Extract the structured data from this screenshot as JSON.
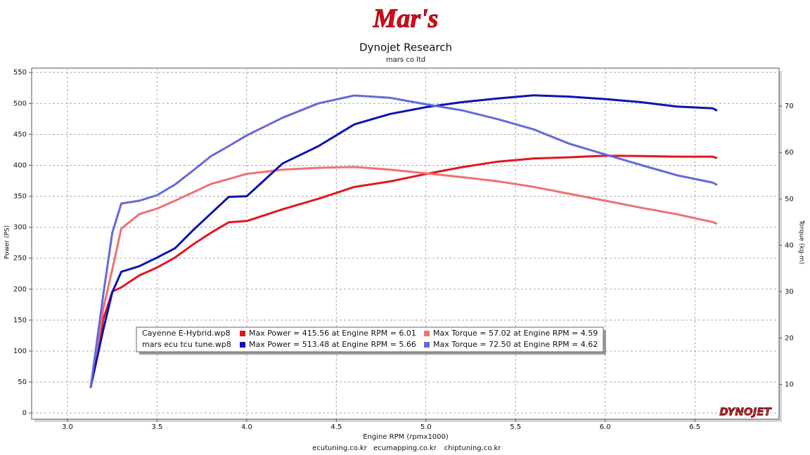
{
  "chart_data": {
    "type": "line",
    "logo": "Mar's",
    "title": "Dynojet Research",
    "subtitle": "mars co ltd",
    "xlabel": "Engine RPM (rpmx1000)",
    "ylabel": "Power (PS)",
    "y2label": "Torque (kg-m)",
    "brand": "DYNOJET",
    "footer": [
      "ecutuning.co.kr",
      "ecumapping.co.kr",
      "chiptuning.co.kr"
    ],
    "grid": true,
    "xlim": [
      2.8,
      6.97
    ],
    "ylim": [
      -10,
      557
    ],
    "y2lim": [
      2.5,
      78.2
    ],
    "xticks": [
      {
        "value": 3,
        "label": "3.0"
      },
      3.5,
      {
        "value": 4,
        "label": "4.0"
      },
      4.5,
      {
        "value": 5,
        "label": "5.0"
      },
      5.5,
      {
        "value": 6,
        "label": "6.0"
      },
      6.5
    ],
    "yticks": [
      0,
      50,
      100,
      150,
      200,
      250,
      300,
      350,
      400,
      450,
      500,
      550
    ],
    "y2ticks": [
      10,
      20,
      30,
      40,
      50,
      60,
      70
    ],
    "legend_files": [
      "Cayenne E-Hybrid.wp8",
      "mars ecu tcu tune.wp8"
    ],
    "x": [
      3.13,
      3.2,
      3.25,
      3.3,
      3.4,
      3.5,
      3.6,
      3.7,
      3.8,
      3.9,
      4.0,
      4.2,
      4.4,
      4.6,
      4.8,
      5.0,
      5.2,
      5.4,
      5.6,
      5.8,
      6.0,
      6.2,
      6.4,
      6.6,
      6.62
    ],
    "series": [
      {
        "name": "Max Power = 415.56 at Engine RPM = 6.01",
        "color": "#e0161e",
        "axis": "y",
        "file": 0,
        "values": [
          42,
          152,
          196,
          203,
          222,
          235,
          251,
          272,
          291,
          308,
          310,
          329,
          346,
          365,
          374,
          386,
          397,
          406,
          411,
          413,
          415.6,
          415,
          414,
          414,
          412
        ]
      },
      {
        "name": "Max Torque = 57.02 at Engine RPM = 4.59",
        "color": "#f07070",
        "axis": "y2",
        "file": 0,
        "values": [
          9.5,
          26.4,
          34.8,
          43.6,
          46.7,
          47.9,
          49.6,
          51.4,
          53.2,
          54.3,
          55.4,
          56.3,
          56.7,
          56.9,
          56.3,
          55.5,
          54.7,
          53.8,
          52.6,
          51.1,
          49.6,
          48.1,
          46.7,
          45.0,
          44.7
        ]
      },
      {
        "name": "Max Power = 513.48 at Engine RPM = 5.66",
        "color": "#0c12b4",
        "axis": "y",
        "file": 1,
        "values": [
          42,
          135,
          195,
          228,
          237,
          251,
          266,
          295,
          322,
          349,
          350,
          403,
          431,
          466,
          483,
          494,
          502,
          508,
          513,
          511,
          507,
          502,
          495,
          492,
          489
        ]
      },
      {
        "name": "Max Torque = 72.50 at Engine RPM = 4.62",
        "color": "#6468dc",
        "axis": "y2",
        "file": 1,
        "values": [
          9.5,
          29.5,
          42.7,
          49.0,
          49.6,
          50.8,
          53.1,
          56.1,
          59.2,
          61.4,
          63.7,
          67.5,
          70.6,
          72.3,
          71.8,
          70.4,
          69.1,
          67.2,
          65.0,
          61.9,
          59.6,
          57.3,
          55.1,
          53.5,
          53.1
        ]
      }
    ]
  }
}
